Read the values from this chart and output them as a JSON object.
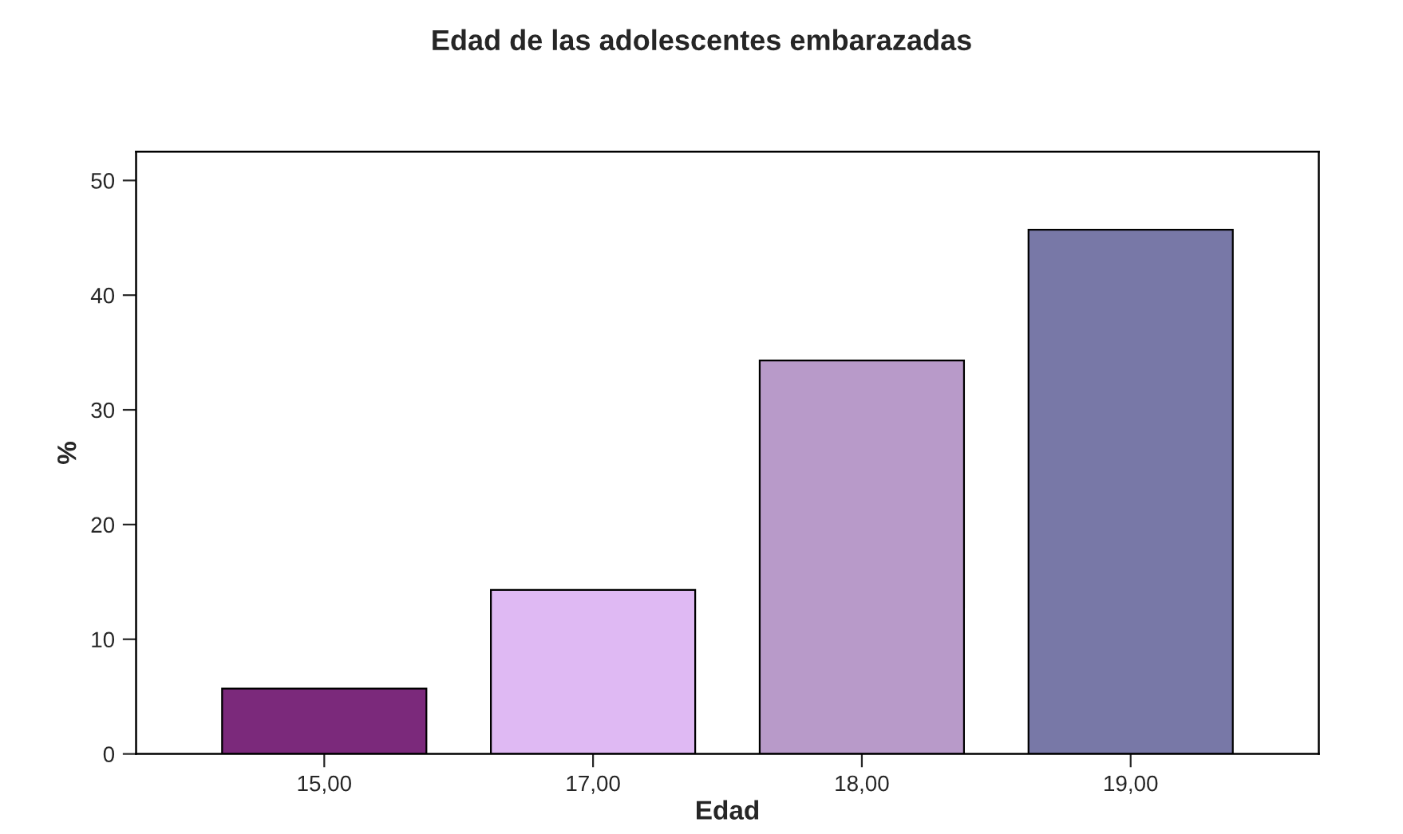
{
  "chart_data": {
    "type": "bar",
    "title": "Edad de las adolescentes embarazadas",
    "xlabel": "Edad",
    "ylabel": "%",
    "categories": [
      "15,00",
      "17,00",
      "18,00",
      "19,00"
    ],
    "values": [
      5.7,
      14.3,
      34.3,
      45.7
    ],
    "colors": [
      "#7b297b",
      "#dfb9f3",
      "#b89ac9",
      "#7878a7"
    ],
    "ylim": [
      0,
      52.5
    ],
    "yticks": [
      0,
      10,
      20,
      30,
      40,
      50
    ],
    "grid": false,
    "legend": false
  }
}
